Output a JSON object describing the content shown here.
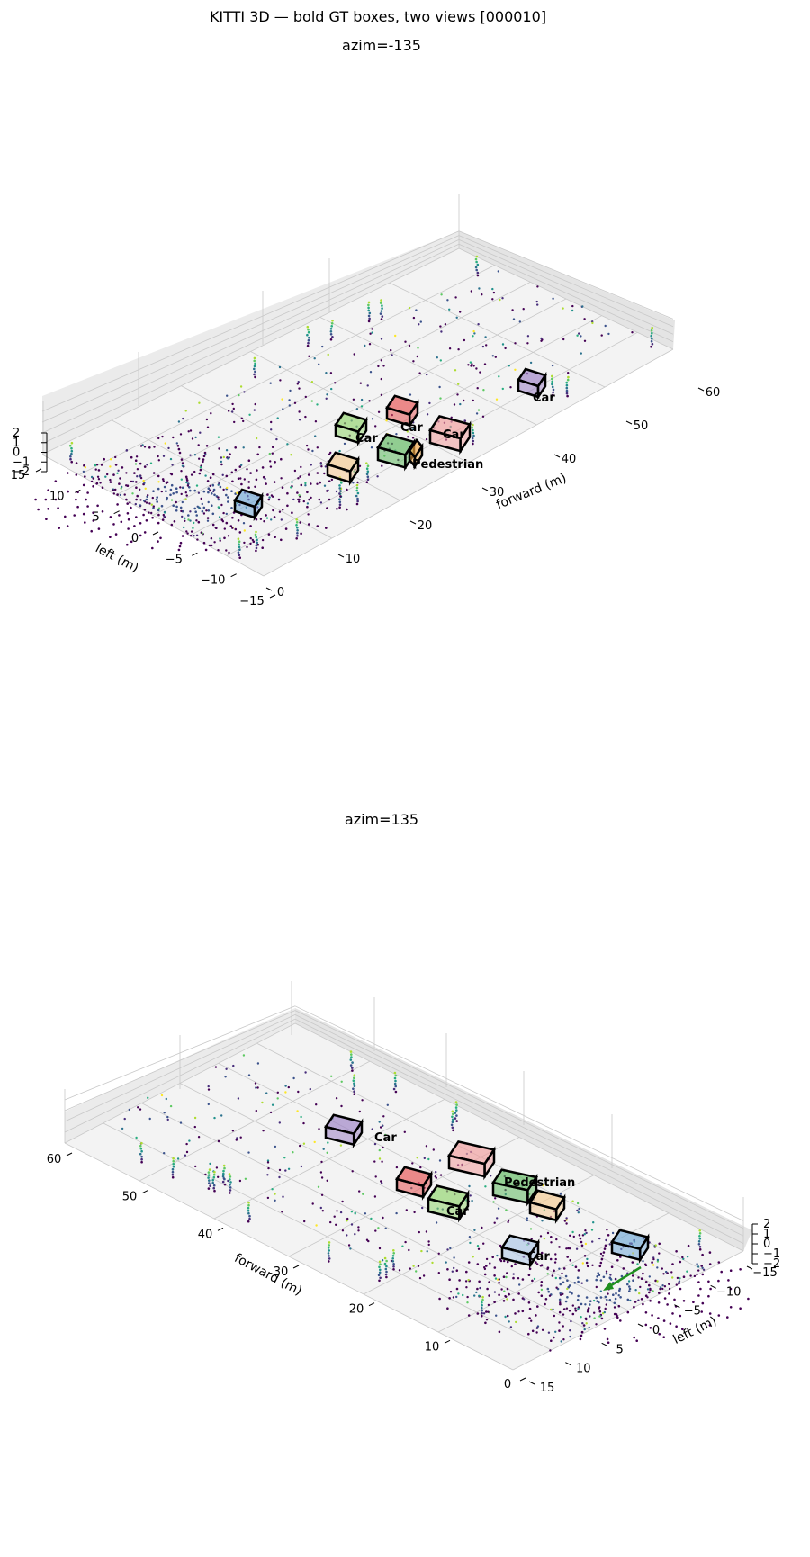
{
  "figure": {
    "title": "KITTI 3D — bold GT boxes, two views  [000010]"
  },
  "chart_data": [
    {
      "type": "scatter",
      "subplot_title": "azim=-135",
      "view": {
        "azim": -135
      },
      "axes": {
        "x": {
          "label": "forward (m)",
          "ticks": [
            "0",
            "10",
            "20",
            "30",
            "40",
            "50",
            "60"
          ],
          "range": [
            0,
            60
          ]
        },
        "y": {
          "label": "left (m)",
          "ticks": [
            "−15",
            "−10",
            "−5",
            "0",
            "5",
            "10",
            "15"
          ],
          "range": [
            -15,
            15
          ]
        },
        "z": {
          "label": "",
          "ticks": [
            "−2",
            "−1",
            "0",
            "1",
            "2"
          ],
          "range": [
            -2,
            2
          ]
        }
      },
      "grid": true,
      "colormap": "viridis (by height)",
      "boxes": [
        {
          "label": "Car",
          "fill": "#9b7fc4"
        },
        {
          "label": "Car",
          "fill": "#e65050"
        },
        {
          "label": "Car",
          "fill": "#f19b9b"
        },
        {
          "label": "Car",
          "fill": "#8fd46a"
        },
        {
          "label": "Car",
          "fill": "#5cb85c"
        },
        {
          "label": "Pedestrian",
          "fill": "#f2a640"
        },
        {
          "label": "",
          "fill": "#f5c98f"
        },
        {
          "label": "",
          "fill": "#6fa8d6"
        }
      ]
    },
    {
      "type": "scatter",
      "subplot_title": "azim=135",
      "view": {
        "azim": 135
      },
      "axes": {
        "x": {
          "label": "forward (m)",
          "ticks": [
            "0",
            "10",
            "20",
            "30",
            "40",
            "50",
            "60"
          ],
          "range": [
            0,
            60
          ]
        },
        "y": {
          "label": "left (m)",
          "ticks": [
            "15",
            "10",
            "5",
            "0",
            "−5",
            "−10",
            "−15"
          ],
          "range": [
            -15,
            15
          ]
        },
        "z": {
          "label": "",
          "ticks": [
            "−2",
            "−1",
            "0",
            "1",
            "2"
          ],
          "range": [
            -2,
            2
          ]
        }
      },
      "grid": true,
      "colormap": "viridis (by height)",
      "boxes": [
        {
          "label": "Car",
          "fill": "#9b7fc4"
        },
        {
          "label": "Car",
          "fill": "#e65050"
        },
        {
          "label": "Car",
          "fill": "#8fd46a"
        },
        {
          "label": "",
          "fill": "#f19b9b"
        },
        {
          "label": "Pedestrian",
          "fill": "#5cb85c"
        },
        {
          "label": "",
          "fill": "#f5c98f"
        },
        {
          "label": "Car",
          "fill": "#a9c4e6"
        },
        {
          "label": "",
          "fill": "#6fa8d6"
        }
      ],
      "ego_arrow": {
        "color": "#1f8f1f"
      }
    }
  ]
}
